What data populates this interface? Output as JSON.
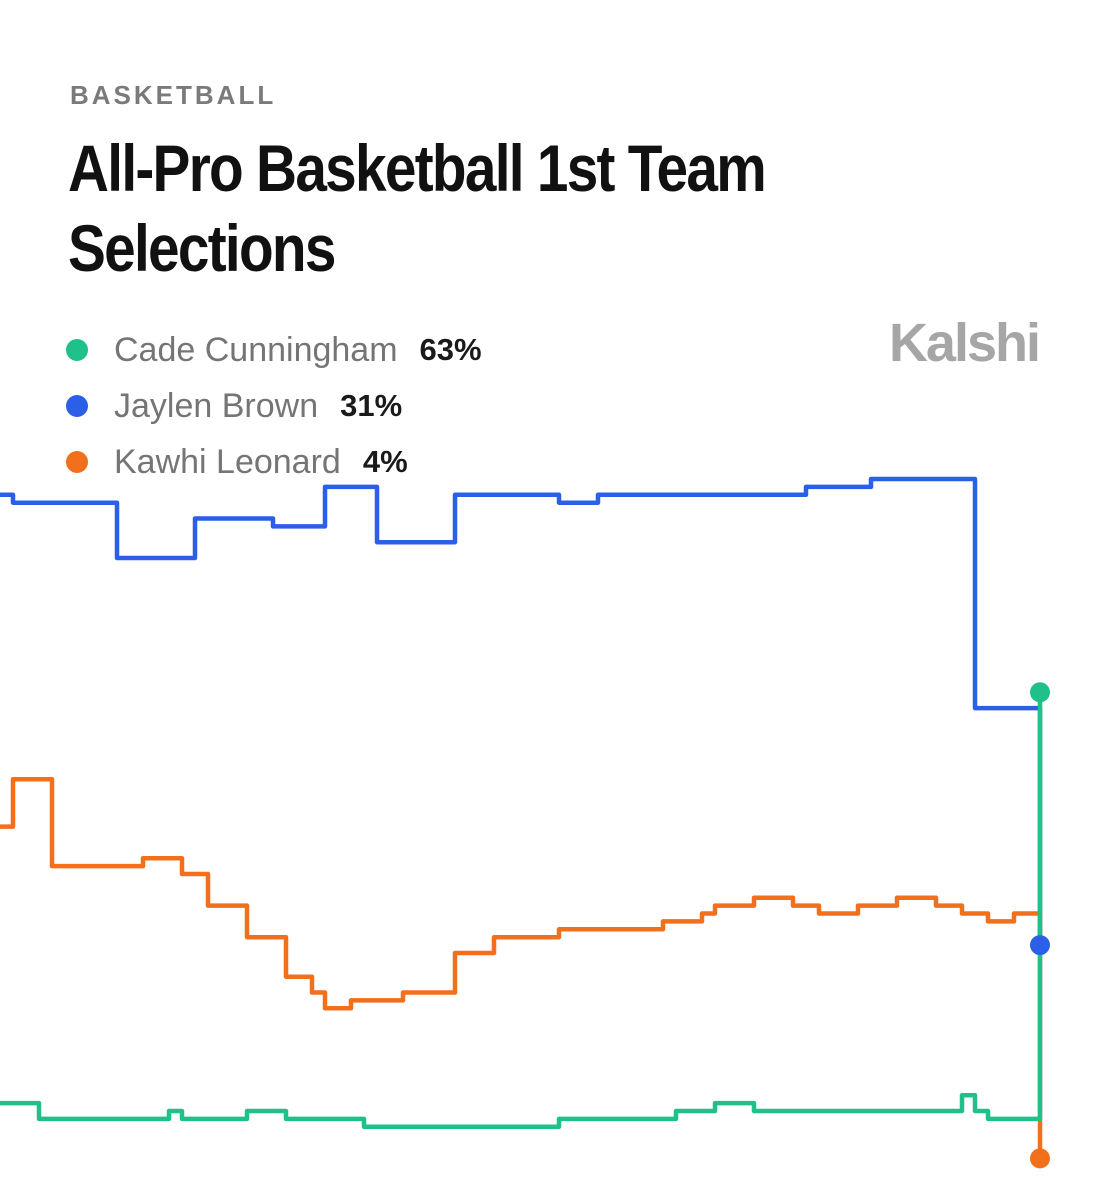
{
  "header": {
    "eyebrow": "BASKETBALL",
    "title": "All-Pro Basketball 1st Team Selections",
    "logo": "Kalshi"
  },
  "chart_data": {
    "type": "line",
    "title": "All-Pro Basketball 1st Team Selections",
    "xlabel": "",
    "ylabel": "",
    "ylim": [
      0,
      100
    ],
    "grid": false,
    "legend_placement": "top-left",
    "x": [
      0,
      1,
      2,
      3,
      4,
      5,
      6,
      7,
      8,
      9,
      10,
      11,
      12,
      13,
      14,
      15,
      16,
      17,
      18,
      19,
      20,
      21,
      22,
      23,
      24,
      25,
      26,
      27,
      28,
      29,
      30,
      31,
      32,
      33,
      34,
      35,
      36,
      37,
      38,
      39,
      40,
      41,
      42,
      43,
      44,
      45,
      46,
      47,
      48,
      49,
      50,
      51,
      52,
      53,
      54,
      55,
      56,
      57,
      58,
      59,
      60,
      61,
      62,
      63,
      64,
      65,
      66,
      67,
      68,
      69,
      70,
      71,
      72,
      73,
      74,
      75,
      76,
      77,
      78,
      79,
      80
    ],
    "series": [
      {
        "name": "Cade Cunningham",
        "current": "63%",
        "color": "#1fc08a",
        "values": [
          11,
          11,
          11,
          9,
          9,
          9,
          9,
          9,
          9,
          9,
          9,
          9,
          9,
          10,
          9,
          9,
          9,
          9,
          9,
          10,
          10,
          10,
          9,
          9,
          9,
          9,
          9,
          9,
          8,
          8,
          8,
          8,
          8,
          8,
          8,
          8,
          8,
          8,
          8,
          8,
          8,
          8,
          8,
          9,
          9,
          9,
          9,
          9,
          9,
          9,
          9,
          9,
          10,
          10,
          10,
          11,
          11,
          11,
          10,
          10,
          10,
          10,
          10,
          10,
          10,
          10,
          10,
          10,
          10,
          10,
          10,
          10,
          10,
          10,
          12,
          10,
          9,
          9,
          9,
          9,
          63
        ]
      },
      {
        "name": "Jaylen Brown",
        "current": "31%",
        "color": "#2b5fe8",
        "values": [
          88,
          87,
          87,
          87,
          87,
          87,
          87,
          87,
          87,
          80,
          80,
          80,
          80,
          80,
          80,
          85,
          85,
          85,
          85,
          85,
          85,
          84,
          84,
          84,
          84,
          89,
          89,
          89,
          89,
          82,
          82,
          82,
          82,
          82,
          82,
          88,
          88,
          88,
          88,
          88,
          88,
          88,
          88,
          87,
          87,
          87,
          88,
          88,
          88,
          88,
          88,
          88,
          88,
          88,
          88,
          88,
          88,
          88,
          88,
          88,
          88,
          88,
          89,
          89,
          89,
          89,
          89,
          90,
          90,
          90,
          90,
          90,
          90,
          90,
          90,
          61,
          61,
          61,
          61,
          61,
          31
        ]
      },
      {
        "name": "Kawhi Leonard",
        "current": "4%",
        "color": "#f26f1c",
        "values": [
          46,
          52,
          52,
          52,
          41,
          41,
          41,
          41,
          41,
          41,
          41,
          42,
          42,
          42,
          40,
          40,
          36,
          36,
          36,
          32,
          32,
          32,
          27,
          27,
          25,
          23,
          23,
          24,
          24,
          24,
          24,
          25,
          25,
          25,
          25,
          30,
          30,
          30,
          32,
          32,
          32,
          32,
          32,
          33,
          33,
          33,
          33,
          33,
          33,
          33,
          33,
          34,
          34,
          34,
          35,
          36,
          36,
          36,
          37,
          37,
          37,
          36,
          36,
          35,
          35,
          35,
          36,
          36,
          36,
          37,
          37,
          37,
          36,
          36,
          35,
          35,
          34,
          34,
          35,
          35,
          4
        ]
      }
    ]
  }
}
